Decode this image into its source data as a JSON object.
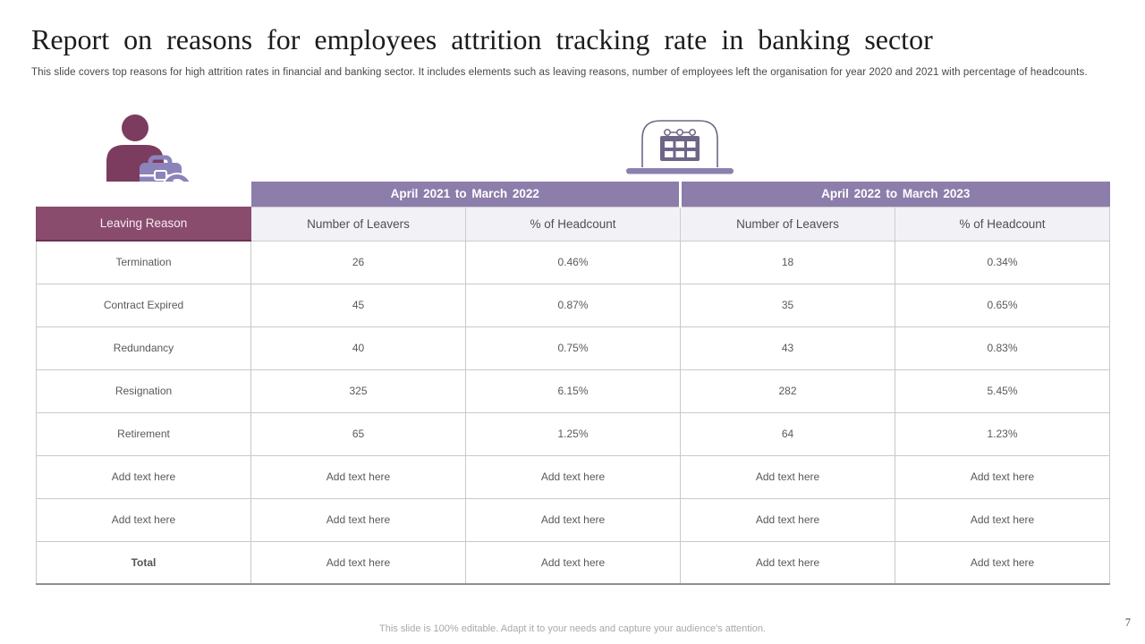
{
  "header": {
    "title": "Report on reasons for employees attrition tracking rate in banking sector",
    "subtitle": "This slide covers top reasons for high attrition rates in financial and banking sector. It includes elements such as leaving reasons, number of employees left the organisation for year 2020 and 2021 with percentage of headcounts."
  },
  "icons": {
    "person": "employee-leaving-with-briefcase-icon",
    "calendar": "calendar-on-screen-icon"
  },
  "table": {
    "year_headers": [
      "April 2021 to March 2022",
      "April 2022 to March 2023"
    ],
    "columns": [
      "Leaving Reason",
      "Number of Leavers",
      "% of Headcount",
      "Number of Leavers",
      "% of Headcount"
    ],
    "rows": [
      [
        "Termination",
        "26",
        "0.46%",
        "18",
        "0.34%"
      ],
      [
        "Contract Expired",
        "45",
        "0.87%",
        "35",
        "0.65%"
      ],
      [
        "Redundancy",
        "40",
        "0.75%",
        "43",
        "0.83%"
      ],
      [
        "Resignation",
        "325",
        "6.15%",
        "282",
        "5.45%"
      ],
      [
        "Retirement",
        "65",
        "1.25%",
        "64",
        "1.23%"
      ],
      [
        "Add text here",
        "Add text here",
        "Add text here",
        "Add text here",
        "Add text here"
      ],
      [
        "Add text here",
        "Add text here",
        "Add text here",
        "Add text here",
        "Add text here"
      ],
      [
        "Total",
        "Add text here",
        "Add text here",
        "Add text here",
        "Add text here"
      ]
    ],
    "placeholder_text": "Add text here",
    "total_label": "Total"
  },
  "footer": {
    "note": "This slide is 100% editable. Adapt it to your needs and capture your audience's attention.",
    "page_number": "7"
  },
  "colors": {
    "person_plum": "#7c3c5f",
    "briefcase_purple": "#8c83bb",
    "year_header_purple": "#8c7dab",
    "reason_header_maroon": "#8a4c6d",
    "subheader_bg": "#f2f1f6",
    "cell_text": "#595959",
    "border_gray": "#c9c9c9"
  }
}
